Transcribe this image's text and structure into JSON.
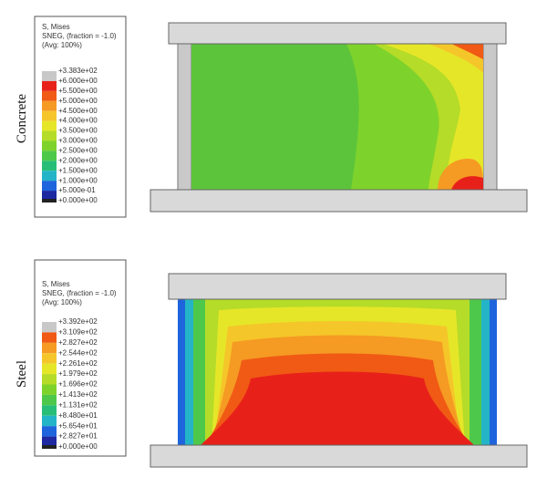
{
  "panels": [
    {
      "label": "Concrete",
      "legend": {
        "title": [
          "S, Mises",
          "SNEG, (fraction = -1.0)",
          "(Avg: 100%)"
        ],
        "entries": [
          "+3.383e+02",
          "+6.000e+00",
          "+5.500e+00",
          "+5.000e+00",
          "+4.500e+00",
          "+4.000e+00",
          "+3.500e+00",
          "+3.000e+00",
          "+2.500e+00",
          "+2.000e+00",
          "+1.500e+00",
          "+1.000e+00",
          "+5.000e-01",
          "+0.000e+00"
        ]
      }
    },
    {
      "label": "Steel",
      "legend": {
        "title": [
          "S, Mises",
          "SNEG, (fraction = -1.0)",
          "(Avg: 100%)"
        ],
        "entries": [
          "+3.392e+02",
          "+3.109e+02",
          "+2.827e+02",
          "+2.544e+02",
          "+2.261e+02",
          "+1.979e+02",
          "+1.696e+02",
          "+1.413e+02",
          "+1.131e+02",
          "+8.480e+01",
          "+5.654e+01",
          "+2.827e+01",
          "+0.000e+00"
        ]
      }
    }
  ]
}
